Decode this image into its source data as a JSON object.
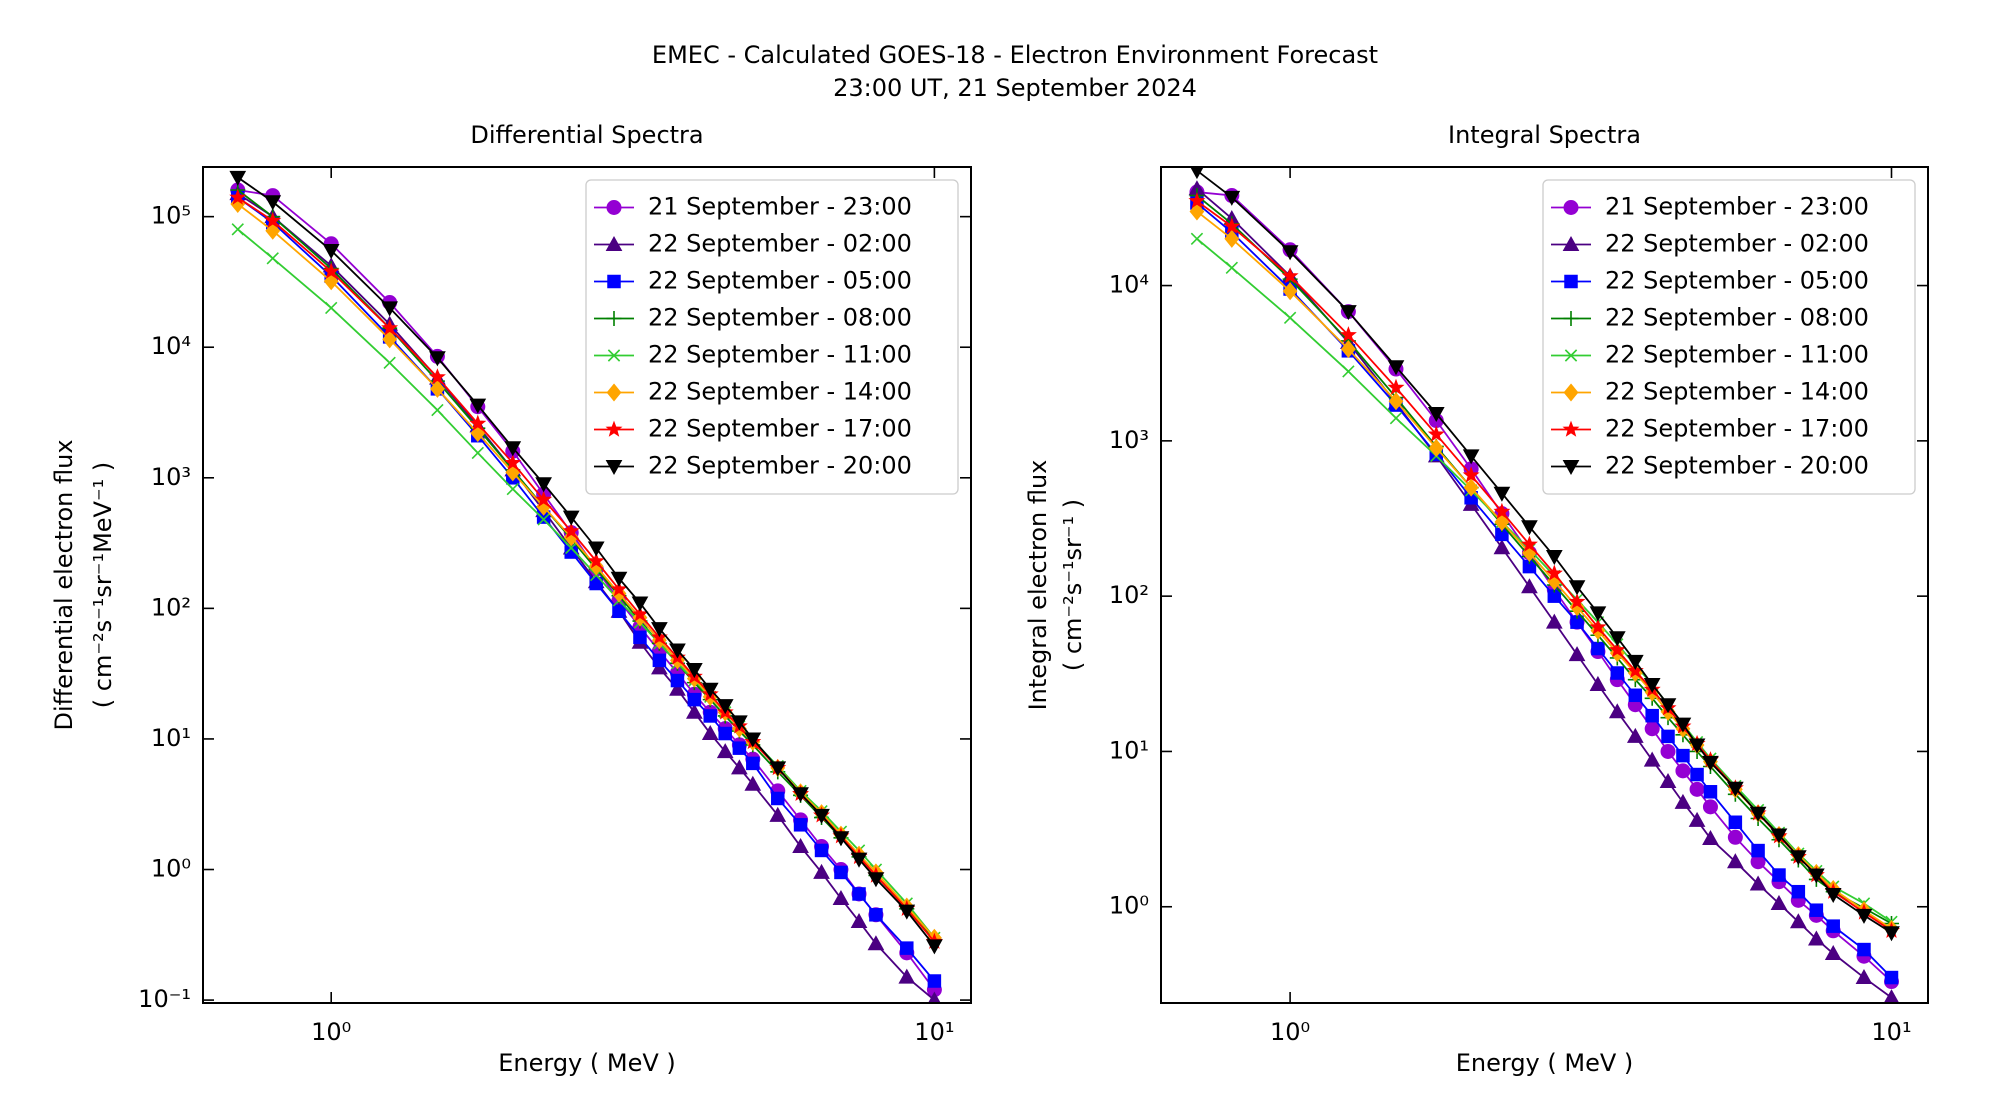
{
  "title": [
    "EMEC - Calculated GOES-18 - Electron Environment Forecast",
    "23:00 UT, 21 September 2024"
  ],
  "chart_data": [
    {
      "type": "line",
      "title": "Differential Spectra",
      "x_label": "Energy ( MeV )",
      "y_label": [
        "Differential electron flux",
        "( cm⁻²s⁻¹sr⁻¹MeV⁻¹ )"
      ],
      "log_x": true,
      "log_y": true,
      "legend": "upper right",
      "x": [
        0.7,
        0.8,
        1,
        1.25,
        1.5,
        1.75,
        2,
        2.25,
        2.5,
        2.75,
        3,
        3.25,
        3.5,
        3.75,
        4,
        4.25,
        4.5,
        4.75,
        5,
        5.5,
        6,
        6.5,
        7,
        7.5,
        8,
        9,
        10
      ],
      "xlim": [
        0.613,
        11.5
      ],
      "ylim": [
        0.095,
        240000
      ],
      "xticks": [
        {
          "value": 1,
          "label": "10⁰"
        },
        {
          "value": 10,
          "label": "10¹"
        }
      ],
      "yticks": [
        {
          "value": 0.1,
          "label": "10⁻¹"
        },
        {
          "value": 1,
          "label": "10⁰"
        },
        {
          "value": 10,
          "label": "10¹"
        },
        {
          "value": 100,
          "label": "10²"
        },
        {
          "value": 1000,
          "label": "10³"
        },
        {
          "value": 10000,
          "label": "10⁴"
        },
        {
          "value": 100000,
          "label": "10⁵"
        }
      ],
      "series": [
        {
          "name": "21 September - 23:00",
          "color": "#9400d3",
          "marker": "o",
          "values": [
            160000,
            145000,
            62000,
            22000,
            8500,
            3500,
            1600,
            750,
            380,
            200,
            115,
            72,
            47,
            32,
            22,
            16,
            12,
            9,
            7,
            4,
            2.4,
            1.5,
            1.0,
            0.65,
            0.45,
            0.23,
            0.12
          ]
        },
        {
          "name": "22 September - 02:00",
          "color": "#4b0082",
          "marker": "^",
          "values": [
            150000,
            100000,
            42000,
            15000,
            5800,
            2500,
            1150,
            560,
            290,
            160,
            95,
            55,
            35,
            24,
            16,
            11,
            8,
            6,
            4.5,
            2.6,
            1.5,
            0.95,
            0.6,
            0.4,
            0.27,
            0.15,
            0.1
          ]
        },
        {
          "name": "22 September - 05:00",
          "color": "#0000ff",
          "marker": "s",
          "values": [
            140000,
            90000,
            35000,
            12000,
            4800,
            2100,
            1000,
            500,
            270,
            155,
            95,
            60,
            40,
            28,
            20,
            15,
            11,
            8.5,
            6.5,
            3.5,
            2.2,
            1.4,
            0.95,
            0.65,
            0.45,
            0.25,
            0.14
          ]
        },
        {
          "name": "22 September - 08:00",
          "color": "#008000",
          "marker": "+",
          "values": [
            160000,
            100000,
            40000,
            14000,
            5500,
            2400,
            1150,
            600,
            340,
            200,
            125,
            80,
            54,
            38,
            27,
            20,
            15,
            11.5,
            9,
            5.6,
            3.7,
            2.5,
            1.75,
            1.25,
            0.9,
            0.5,
            0.29
          ]
        },
        {
          "name": "22 September - 11:00",
          "color": "#32cd32",
          "marker": "x",
          "values": [
            80000,
            48000,
            20000,
            7600,
            3300,
            1550,
            820,
            480,
            290,
            180,
            115,
            78,
            54,
            38,
            28,
            21,
            16,
            12.5,
            9.8,
            6.2,
            4.0,
            2.8,
            1.95,
            1.4,
            1.0,
            0.55,
            0.3
          ]
        },
        {
          "name": "22 September - 14:00",
          "color": "#ffa500",
          "marker": "D",
          "values": [
            125000,
            78000,
            32000,
            11500,
            4800,
            2200,
            1100,
            600,
            350,
            210,
            130,
            85,
            57,
            40,
            29,
            21,
            16,
            12,
            9.5,
            6,
            3.9,
            2.7,
            1.85,
            1.3,
            0.95,
            0.52,
            0.3
          ]
        },
        {
          "name": "22 September - 17:00",
          "color": "#ff0000",
          "marker": "*",
          "values": [
            140000,
            93000,
            38000,
            14000,
            5900,
            2600,
            1300,
            680,
            390,
            230,
            140,
            90,
            60,
            42,
            30,
            22,
            16,
            12.5,
            9.5,
            6,
            3.8,
            2.6,
            1.8,
            1.25,
            0.9,
            0.5,
            0.28
          ]
        },
        {
          "name": "22 September - 20:00",
          "color": "#000000",
          "marker": "v",
          "values": [
            200000,
            130000,
            55000,
            20000,
            8300,
            3600,
            1700,
            900,
            500,
            290,
            170,
            110,
            70,
            48,
            34,
            24,
            18,
            13.5,
            10,
            6,
            3.8,
            2.6,
            1.75,
            1.2,
            0.85,
            0.48,
            0.26
          ]
        }
      ]
    },
    {
      "type": "line",
      "title": "Integral Spectra",
      "x_label": "Energy ( MeV )",
      "y_label": [
        "Integral electron flux",
        "( cm⁻²s⁻¹sr⁻¹ )"
      ],
      "log_x": true,
      "log_y": true,
      "legend": "upper right",
      "x": [
        0.7,
        0.8,
        1,
        1.25,
        1.5,
        1.75,
        2,
        2.25,
        2.5,
        2.75,
        3,
        3.25,
        3.5,
        3.75,
        4,
        4.25,
        4.5,
        4.75,
        5,
        5.5,
        6,
        6.5,
        7,
        7.5,
        8,
        9,
        10
      ],
      "xlim": [
        0.61,
        11.5
      ],
      "ylim": [
        0.24,
        58000
      ],
      "xticks": [
        {
          "value": 1,
          "label": "10⁰"
        },
        {
          "value": 10,
          "label": "10¹"
        }
      ],
      "yticks": [
        {
          "value": 1,
          "label": "10⁰"
        },
        {
          "value": 10,
          "label": "10¹"
        },
        {
          "value": 100,
          "label": "10²"
        },
        {
          "value": 1000,
          "label": "10³"
        },
        {
          "value": 10000,
          "label": "10⁴"
        }
      ],
      "series": [
        {
          "name": "21 September - 23:00",
          "color": "#9400d3",
          "marker": "o",
          "values": [
            40000,
            38000,
            17000,
            6800,
            2900,
            1350,
            660,
            340,
            190,
            110,
            68,
            44,
            29,
            20,
            14,
            10,
            7.5,
            5.7,
            4.4,
            2.8,
            1.95,
            1.45,
            1.1,
            0.88,
            0.7,
            0.48,
            0.33
          ]
        },
        {
          "name": "22 September - 02:00",
          "color": "#4b0082",
          "marker": "^",
          "values": [
            42000,
            27000,
            11500,
            4300,
            1750,
            800,
            390,
            205,
            115,
            68,
            42,
            27,
            18,
            12.5,
            8.8,
            6.4,
            4.7,
            3.6,
            2.75,
            1.95,
            1.4,
            1.05,
            0.8,
            0.62,
            0.5,
            0.35,
            0.26
          ]
        },
        {
          "name": "22 September - 05:00",
          "color": "#0000ff",
          "marker": "s",
          "values": [
            34000,
            22000,
            9500,
            3800,
            1700,
            820,
            430,
            250,
            155,
            100,
            68,
            46,
            32,
            23,
            17,
            12.5,
            9.4,
            7.1,
            5.5,
            3.5,
            2.3,
            1.6,
            1.25,
            0.95,
            0.75,
            0.53,
            0.35
          ]
        },
        {
          "name": "22 September - 08:00",
          "color": "#008000",
          "marker": "+",
          "values": [
            38000,
            25000,
            11000,
            4400,
            1900,
            920,
            500,
            290,
            180,
            118,
            80,
            56,
            40,
            29,
            22,
            16.5,
            12.8,
            10,
            8,
            5.3,
            3.7,
            2.7,
            2.0,
            1.5,
            1.25,
            0.98,
            0.78
          ]
        },
        {
          "name": "22 September - 11:00",
          "color": "#32cd32",
          "marker": "x",
          "values": [
            20000,
            13000,
            6200,
            2800,
            1400,
            800,
            480,
            300,
            200,
            135,
            95,
            68,
            49,
            36,
            27,
            20,
            15,
            11.5,
            9,
            6,
            4.2,
            3.0,
            2.2,
            1.7,
            1.35,
            1.05,
            0.8
          ]
        },
        {
          "name": "22 September - 14:00",
          "color": "#ffa500",
          "marker": "D",
          "values": [
            30000,
            20000,
            9200,
            3900,
            1800,
            900,
            500,
            300,
            190,
            125,
            85,
            60,
            43,
            32,
            24,
            18,
            14,
            11,
            8.6,
            5.7,
            4.0,
            2.9,
            2.15,
            1.65,
            1.3,
            0.95,
            0.72
          ]
        },
        {
          "name": "22 September - 17:00",
          "color": "#ff0000",
          "marker": "*",
          "values": [
            35000,
            24000,
            11500,
            4800,
            2200,
            1100,
            600,
            350,
            215,
            140,
            92,
            63,
            45,
            33,
            25,
            19,
            14.5,
            11.2,
            8.8,
            5.8,
            4.0,
            2.85,
            2.1,
            1.6,
            1.25,
            0.92,
            0.7
          ]
        },
        {
          "name": "22 September - 20:00",
          "color": "#000000",
          "marker": "v",
          "values": [
            55000,
            37000,
            16500,
            6800,
            3000,
            1500,
            800,
            460,
            280,
            180,
            115,
            78,
            54,
            38,
            27,
            20,
            15,
            11,
            8.5,
            5.8,
            4.0,
            2.9,
            2.1,
            1.6,
            1.2,
            0.88,
            0.68
          ]
        }
      ]
    }
  ]
}
